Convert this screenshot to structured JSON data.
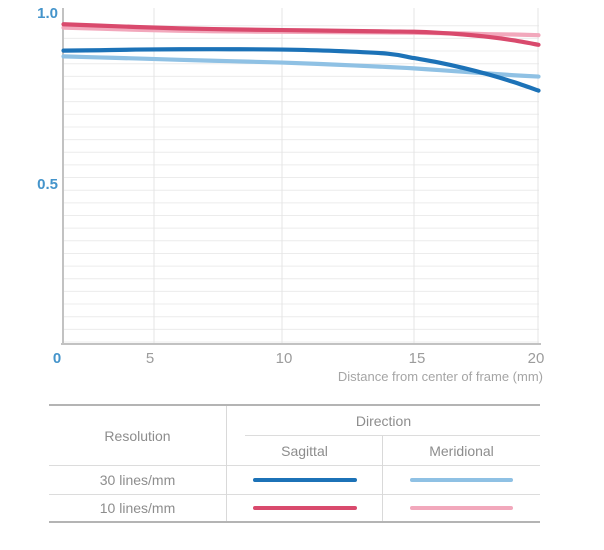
{
  "chart": {
    "y_axis_labels": [
      "1.0",
      "0.5"
    ],
    "x_axis_labels": [
      "0",
      "5",
      "10",
      "15",
      "20"
    ],
    "x_axis_title": "Distance from center of frame (mm)"
  },
  "chart_data": {
    "type": "line",
    "title": "",
    "xlabel": "Distance from center of frame (mm)",
    "ylabel": "",
    "xlim": [
      0,
      20
    ],
    "ylim": [
      0,
      1.0
    ],
    "x_ticks": [
      0,
      5,
      10,
      15,
      20
    ],
    "y_ticks": [
      0.5,
      1.0
    ],
    "grid": true,
    "legend_position": "table-below",
    "x": [
      0,
      2,
      4,
      6,
      8,
      10,
      12,
      14,
      15,
      16,
      17,
      18,
      19,
      20
    ],
    "series": [
      {
        "name": "30 lines/mm Sagittal",
        "color": "#1c72b7",
        "values": [
          0.893,
          0.894,
          0.896,
          0.897,
          0.897,
          0.896,
          0.892,
          0.884,
          0.871,
          0.858,
          0.842,
          0.823,
          0.801,
          0.776
        ]
      },
      {
        "name": "30 lines/mm Meridional",
        "color": "#8fc1e4",
        "values": [
          0.876,
          0.873,
          0.87,
          0.866,
          0.862,
          0.858,
          0.852,
          0.845,
          0.841,
          0.836,
          0.831,
          0.826,
          0.821,
          0.817
        ]
      },
      {
        "name": "10 lines/mm Sagittal",
        "color": "#d94a6d",
        "values": [
          0.97,
          0.966,
          0.962,
          0.958,
          0.955,
          0.953,
          0.951,
          0.949,
          0.948,
          0.945,
          0.94,
          0.933,
          0.923,
          0.91
        ]
      },
      {
        "name": "10 lines/mm Meridional",
        "color": "#f2a8bc",
        "values": [
          0.96,
          0.957,
          0.954,
          0.951,
          0.949,
          0.948,
          0.947,
          0.946,
          0.945,
          0.944,
          0.943,
          0.941,
          0.94,
          0.938
        ]
      }
    ]
  },
  "table": {
    "resolution_header": "Resolution",
    "direction_header": "Direction",
    "sagittal_header": "Sagittal",
    "meridional_header": "Meridional",
    "rows": [
      {
        "resolution": "30 lines/mm",
        "sagittal_color": "#1c72b7",
        "meridional_color": "#8fc1e4"
      },
      {
        "resolution": "10 lines/mm",
        "sagittal_color": "#d94a6d",
        "meridional_color": "#f2a8bc"
      }
    ]
  },
  "colors": {
    "axis_label_blue": "#4494cb",
    "tick_gray": "#9c9c9c",
    "axis_line_gray": "#c2c2c2",
    "grid_horizontal": "#ececec",
    "grid_vertical": "#e4e4e4",
    "table_text_gray": "#8d8d8d",
    "table_border_heavy": "#b4b4b4",
    "table_border_light": "#d9d9d9"
  }
}
